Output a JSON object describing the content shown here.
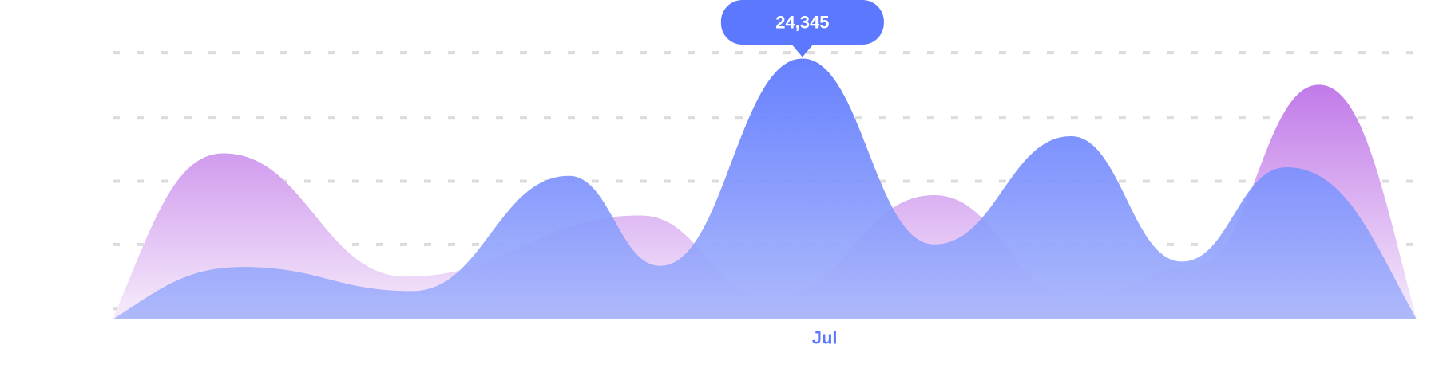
{
  "colors": {
    "series_blue": "#5b78ff",
    "series_purple": "#c17ae9",
    "tooltip_bg": "#5b78ff",
    "tooltip_text": "#ffffff",
    "axis_label": "#5b78ff",
    "grid": "#dcdcdc"
  },
  "chart_data": {
    "type": "area",
    "grid": true,
    "legend": "none",
    "x_range": [
      0,
      100
    ],
    "y_range": [
      0,
      25500
    ],
    "y_gridlines": [
      1000,
      7000,
      12900,
      18800,
      24900
    ],
    "x_tick_labels": [
      {
        "x": 54.6,
        "label": "Jul"
      }
    ],
    "tooltip": {
      "x": 52.9,
      "y": 24345,
      "label": "24,345"
    },
    "series": [
      {
        "color": "#5b78ff",
        "points": [
          [
            0,
            0
          ],
          [
            10,
            4900
          ],
          [
            23,
            2650
          ],
          [
            35,
            13400
          ],
          [
            42,
            5000
          ],
          [
            52.9,
            24345
          ],
          [
            63,
            7000
          ],
          [
            73.5,
            17100
          ],
          [
            82,
            5400
          ],
          [
            90,
            14200
          ],
          [
            100,
            0
          ]
        ]
      },
      {
        "color": "#c17ae9",
        "points": [
          [
            0,
            0
          ],
          [
            8.5,
            15500
          ],
          [
            22.5,
            4000
          ],
          [
            40.5,
            9700
          ],
          [
            50.5,
            2000
          ],
          [
            63,
            11600
          ],
          [
            74,
            2000
          ],
          [
            83,
            5000
          ],
          [
            92.5,
            21900
          ],
          [
            100,
            0
          ]
        ]
      }
    ]
  }
}
